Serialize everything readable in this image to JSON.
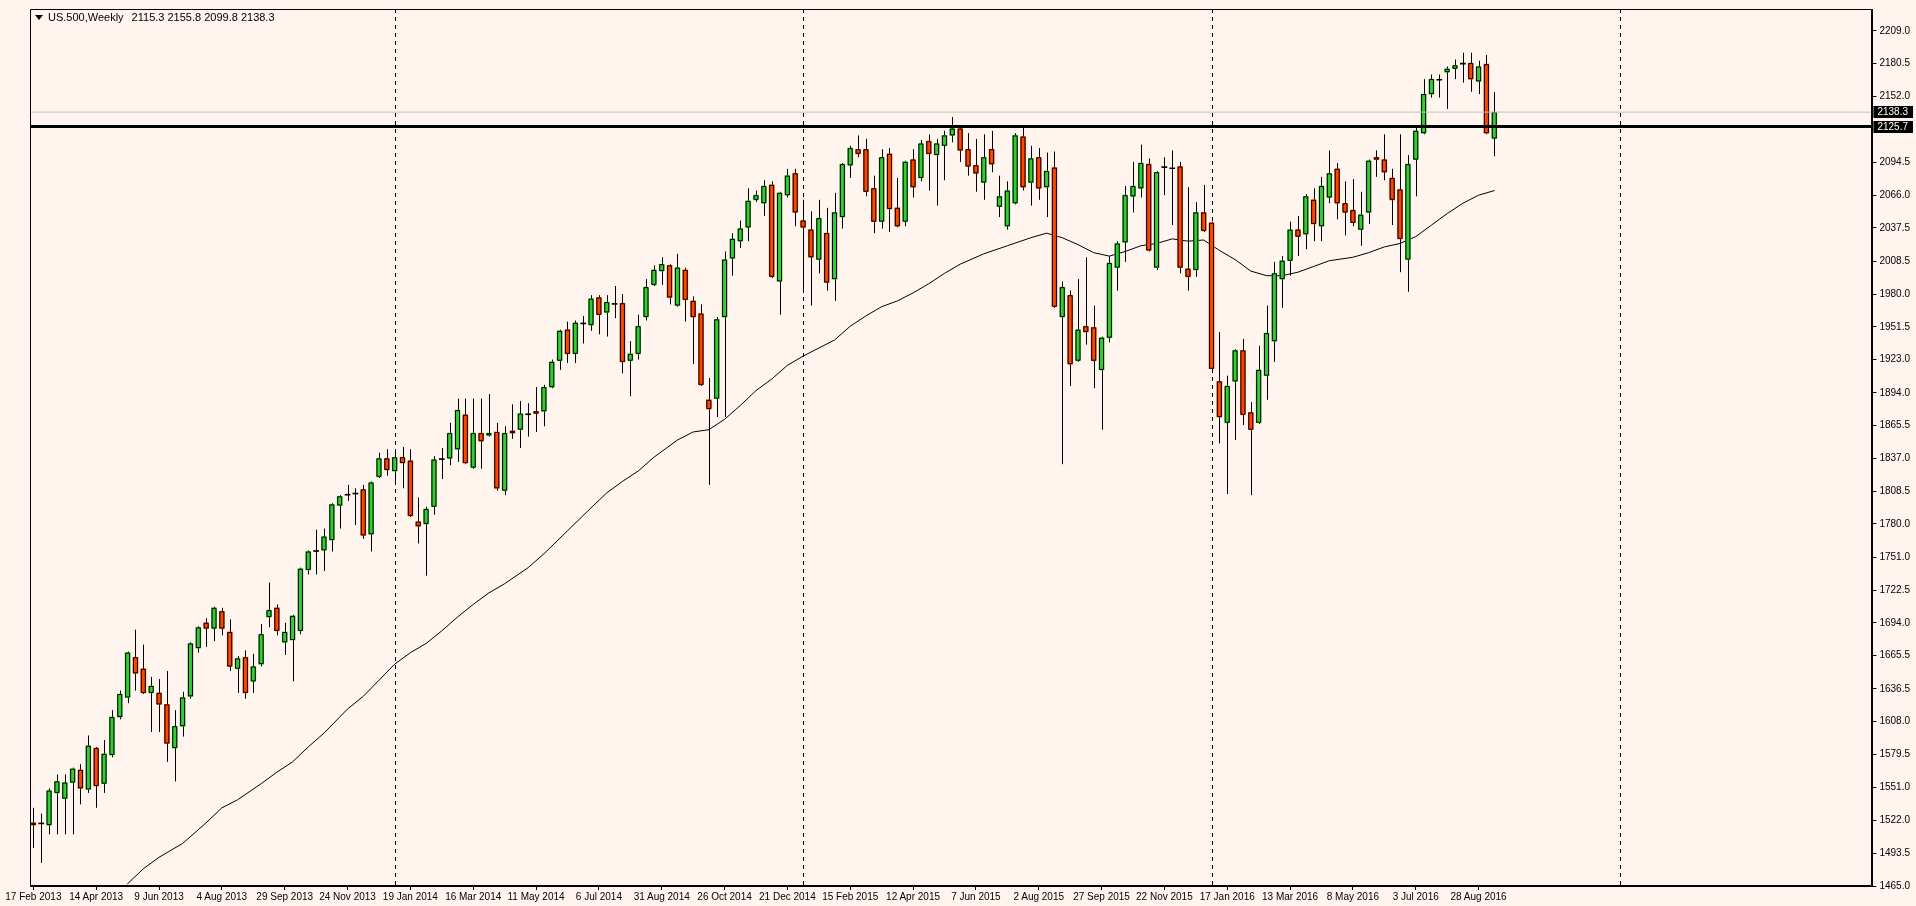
{
  "chart_data": {
    "type": "candlestick",
    "title": "US.500,Weekly",
    "subtitle": "2115.3 2155.8 2099.8 2138.3",
    "series": [
      {
        "x": [
          "2013-02-17",
          "2013-02-24",
          "2013-03-03",
          "2013-03-10",
          "2013-03-17",
          "2013-03-24",
          "2013-03-31",
          "2013-04-07",
          "2013-04-14",
          "2013-04-21",
          "2013-04-28",
          "2013-05-05",
          "2013-05-12",
          "2013-05-19",
          "2013-05-26",
          "2013-06-02",
          "2013-06-09",
          "2013-06-16",
          "2013-06-23",
          "2013-06-30",
          "2013-07-07",
          "2013-07-14",
          "2013-07-21",
          "2013-07-28",
          "2013-08-04",
          "2013-08-11",
          "2013-08-18",
          "2013-08-25",
          "2013-09-01",
          "2013-09-08",
          "2013-09-15",
          "2013-09-22",
          "2013-09-29",
          "2013-10-06",
          "2013-10-13",
          "2013-10-20",
          "2013-10-27",
          "2013-11-03",
          "2013-11-10",
          "2013-11-17",
          "2013-11-24",
          "2013-12-01",
          "2013-12-08",
          "2013-12-15",
          "2013-12-22",
          "2013-12-29",
          "2014-01-05",
          "2014-01-12",
          "2014-01-19",
          "2014-01-26",
          "2014-02-02",
          "2014-02-09",
          "2014-02-16",
          "2014-02-23",
          "2014-03-02",
          "2014-03-09",
          "2014-03-16",
          "2014-03-23",
          "2014-03-30",
          "2014-04-06",
          "2014-04-13",
          "2014-04-20",
          "2014-04-27",
          "2014-05-04",
          "2014-05-11",
          "2014-05-18",
          "2014-05-25",
          "2014-06-01",
          "2014-06-08",
          "2014-06-15",
          "2014-06-22",
          "2014-06-29",
          "2014-07-06",
          "2014-07-13",
          "2014-07-20",
          "2014-07-27",
          "2014-08-03",
          "2014-08-10",
          "2014-08-17",
          "2014-08-24",
          "2014-08-31",
          "2014-09-07",
          "2014-09-14",
          "2014-09-21",
          "2014-09-28",
          "2014-10-05",
          "2014-10-12",
          "2014-10-19",
          "2014-10-26",
          "2014-11-02",
          "2014-11-09",
          "2014-11-16",
          "2014-11-23",
          "2014-11-30",
          "2014-12-07",
          "2014-12-14",
          "2014-12-21",
          "2014-12-28",
          "2015-01-04",
          "2015-01-11",
          "2015-01-18",
          "2015-01-25",
          "2015-02-01",
          "2015-02-08",
          "2015-02-15",
          "2015-02-22",
          "2015-03-01",
          "2015-03-08",
          "2015-03-15",
          "2015-03-22",
          "2015-03-29",
          "2015-04-05",
          "2015-04-12",
          "2015-04-19",
          "2015-04-26",
          "2015-05-03",
          "2015-05-10",
          "2015-05-17",
          "2015-05-24",
          "2015-05-31",
          "2015-06-07",
          "2015-06-14",
          "2015-06-21",
          "2015-06-28",
          "2015-07-05",
          "2015-07-12",
          "2015-07-19",
          "2015-07-26",
          "2015-08-02",
          "2015-08-09",
          "2015-08-16",
          "2015-08-23",
          "2015-08-30",
          "2015-09-06",
          "2015-09-13",
          "2015-09-20",
          "2015-09-27",
          "2015-10-04",
          "2015-10-11",
          "2015-10-18",
          "2015-10-25",
          "2015-11-01",
          "2015-11-08",
          "2015-11-15",
          "2015-11-22",
          "2015-11-29",
          "2015-12-06",
          "2015-12-13",
          "2015-12-20",
          "2015-12-27",
          "2016-01-03",
          "2016-01-10",
          "2016-01-17",
          "2016-01-24",
          "2016-01-31",
          "2016-02-07",
          "2016-02-14",
          "2016-02-21",
          "2016-02-28",
          "2016-03-06",
          "2016-03-13",
          "2016-03-20",
          "2016-03-27",
          "2016-04-03",
          "2016-04-10",
          "2016-04-17",
          "2016-04-24",
          "2016-05-01",
          "2016-05-08",
          "2016-05-15",
          "2016-05-22",
          "2016-05-29",
          "2016-06-05",
          "2016-06-12",
          "2016-06-19",
          "2016-06-26",
          "2016-07-03",
          "2016-07-10",
          "2016-07-17",
          "2016-07-24",
          "2016-07-31",
          "2016-08-07",
          "2016-08-14",
          "2016-08-21",
          "2016-08-28",
          "2016-09-04",
          "2016-09-11"
        ],
        "ohlc": [
          [
            1520,
            1533,
            1498,
            1518
          ],
          [
            1519,
            1528,
            1485,
            1519
          ],
          [
            1518,
            1550,
            1510,
            1548
          ],
          [
            1546,
            1562,
            1510,
            1556
          ],
          [
            1541,
            1562,
            1510,
            1555
          ],
          [
            1555,
            1568,
            1510,
            1567
          ],
          [
            1566,
            1571,
            1536,
            1550
          ],
          [
            1549,
            1596,
            1546,
            1587
          ],
          [
            1585,
            1586,
            1533,
            1552
          ],
          [
            1554,
            1592,
            1546,
            1580
          ],
          [
            1579,
            1618,
            1577,
            1612
          ],
          [
            1612,
            1635,
            1610,
            1632
          ],
          [
            1629,
            1669,
            1624,
            1668
          ],
          [
            1664,
            1688,
            1635,
            1650
          ],
          [
            1654,
            1675,
            1632,
            1633
          ],
          [
            1633,
            1647,
            1599,
            1639
          ],
          [
            1633,
            1645,
            1599,
            1623
          ],
          [
            1623,
            1652,
            1573,
            1589
          ],
          [
            1585,
            1618,
            1556,
            1604
          ],
          [
            1604,
            1634,
            1595,
            1629
          ],
          [
            1630,
            1677,
            1628,
            1676
          ],
          [
            1672,
            1691,
            1668,
            1690
          ],
          [
            1694,
            1698,
            1673,
            1689
          ],
          [
            1689,
            1708,
            1678,
            1707
          ],
          [
            1704,
            1707,
            1683,
            1689
          ],
          [
            1686,
            1697,
            1652,
            1656
          ],
          [
            1654,
            1665,
            1633,
            1663
          ],
          [
            1664,
            1670,
            1628,
            1633
          ],
          [
            1643,
            1667,
            1633,
            1656
          ],
          [
            1658,
            1693,
            1656,
            1684
          ],
          [
            1699,
            1729,
            1690,
            1705
          ],
          [
            1707,
            1710,
            1683,
            1687
          ],
          [
            1677,
            1694,
            1666,
            1686
          ],
          [
            1679,
            1701,
            1643,
            1700
          ],
          [
            1687,
            1742,
            1684,
            1741
          ],
          [
            1740,
            1757,
            1736,
            1756
          ],
          [
            1756,
            1775,
            1736,
            1756
          ],
          [
            1757,
            1776,
            1739,
            1769
          ],
          [
            1766,
            1798,
            1756,
            1797
          ],
          [
            1796,
            1805,
            1776,
            1804
          ],
          [
            1805,
            1814,
            1800,
            1805
          ],
          [
            1806,
            1811,
            1779,
            1806
          ],
          [
            1810,
            1814,
            1767,
            1770
          ],
          [
            1771,
            1817,
            1756,
            1816
          ],
          [
            1821,
            1842,
            1820,
            1837
          ],
          [
            1837,
            1845,
            1822,
            1827
          ],
          [
            1826,
            1845,
            1817,
            1838
          ],
          [
            1838,
            1847,
            1811,
            1833
          ],
          [
            1835,
            1845,
            1786,
            1787
          ],
          [
            1782,
            1803,
            1763,
            1778
          ],
          [
            1780,
            1795,
            1735,
            1793
          ],
          [
            1795,
            1839,
            1788,
            1836
          ],
          [
            1836,
            1846,
            1819,
            1836
          ],
          [
            1837,
            1868,
            1831,
            1859
          ],
          [
            1845,
            1889,
            1834,
            1879
          ],
          [
            1875,
            1889,
            1832,
            1833
          ],
          [
            1829,
            1889,
            1828,
            1859
          ],
          [
            1859,
            1889,
            1828,
            1852
          ],
          [
            1857,
            1893,
            1856,
            1859
          ],
          [
            1860,
            1868,
            1809,
            1811
          ],
          [
            1809,
            1865,
            1805,
            1859
          ],
          [
            1861,
            1884,
            1854,
            1859
          ],
          [
            1862,
            1887,
            1846,
            1876
          ],
          [
            1875,
            1885,
            1856,
            1875
          ],
          [
            1878,
            1899,
            1860,
            1876
          ],
          [
            1878,
            1901,
            1865,
            1899
          ],
          [
            1899,
            1923,
            1898,
            1921
          ],
          [
            1922,
            1949,
            1914,
            1948
          ],
          [
            1949,
            1956,
            1920,
            1928
          ],
          [
            1928,
            1957,
            1920,
            1955
          ],
          [
            1954,
            1961,
            1937,
            1954
          ],
          [
            1953,
            1979,
            1948,
            1976
          ],
          [
            1977,
            1979,
            1945,
            1962
          ],
          [
            1964,
            1979,
            1943,
            1973
          ],
          [
            1971,
            1987,
            1959,
            1971
          ],
          [
            1972,
            1980,
            1911,
            1921
          ],
          [
            1922,
            1939,
            1891,
            1928
          ],
          [
            1928,
            1962,
            1923,
            1952
          ],
          [
            1960,
            1993,
            1957,
            1986
          ],
          [
            1988,
            2005,
            1987,
            2001
          ],
          [
            2000,
            2012,
            1988,
            2006
          ],
          [
            2005,
            2006,
            1971,
            1977
          ],
          [
            1970,
            2015,
            1969,
            2003
          ],
          [
            2001,
            2003,
            1956,
            1975
          ],
          [
            1974,
            1978,
            1919,
            1960
          ],
          [
            1963,
            1971,
            1900,
            1901
          ],
          [
            1888,
            1907,
            1814,
            1880
          ],
          [
            1889,
            1960,
            1873,
            1958
          ],
          [
            1960,
            2017,
            1873,
            2010
          ],
          [
            2011,
            2033,
            1996,
            2028
          ],
          [
            2026,
            2044,
            2020,
            2037
          ],
          [
            2038,
            2072,
            2026,
            2061
          ],
          [
            2062,
            2070,
            2060,
            2066
          ],
          [
            2059,
            2079,
            2048,
            2074
          ],
          [
            2075,
            2078,
            1994,
            1995
          ],
          [
            1991,
            2069,
            1962,
            2068
          ],
          [
            2066,
            2089,
            2064,
            2083
          ],
          [
            2085,
            2089,
            2039,
            2051
          ],
          [
            2044,
            2062,
            1983,
            2038
          ],
          [
            2036,
            2052,
            1970,
            2012
          ],
          [
            2010,
            2062,
            1998,
            2046
          ],
          [
            2033,
            2055,
            1983,
            1990
          ],
          [
            1993,
            2068,
            1974,
            2051
          ],
          [
            2047,
            2094,
            2037,
            2093
          ],
          [
            2092,
            2109,
            2081,
            2107
          ],
          [
            2106,
            2118,
            2099,
            2102
          ],
          [
            2106,
            2115,
            2065,
            2069
          ],
          [
            2072,
            2083,
            2033,
            2043
          ],
          [
            2043,
            2106,
            2037,
            2099
          ],
          [
            2102,
            2107,
            2034,
            2054
          ],
          [
            2055,
            2081,
            2038,
            2039
          ],
          [
            2043,
            2096,
            2039,
            2095
          ],
          [
            2097,
            2106,
            2064,
            2073
          ],
          [
            2081,
            2114,
            2078,
            2111
          ],
          [
            2113,
            2119,
            2070,
            2102
          ],
          [
            2101,
            2115,
            2057,
            2111
          ],
          [
            2109,
            2122,
            2079,
            2118
          ],
          [
            2118,
            2134,
            2112,
            2124
          ],
          [
            2124,
            2126,
            2095,
            2105
          ],
          [
            2106,
            2120,
            2083,
            2091
          ],
          [
            2092,
            2115,
            2069,
            2085
          ],
          [
            2077,
            2119,
            2062,
            2099
          ],
          [
            2106,
            2122,
            2086,
            2093
          ],
          [
            2056,
            2083,
            2047,
            2065
          ],
          [
            2039,
            2078,
            2036,
            2070
          ],
          [
            2059,
            2120,
            2058,
            2118
          ],
          [
            2117,
            2125,
            2070,
            2073
          ],
          [
            2077,
            2109,
            2057,
            2098
          ],
          [
            2099,
            2107,
            2062,
            2072
          ],
          [
            2073,
            2103,
            2047,
            2087
          ],
          [
            2090,
            2104,
            1968,
            1969
          ],
          [
            1960,
            1991,
            1832,
            1986
          ],
          [
            1979,
            1983,
            1900,
            1919
          ],
          [
            1922,
            1993,
            1921,
            1949
          ],
          [
            1952,
            2012,
            1936,
            1947
          ],
          [
            1951,
            1970,
            1898,
            1922
          ],
          [
            1914,
            1943,
            1862,
            1942
          ],
          [
            1942,
            2013,
            1938,
            2007
          ],
          [
            2003,
            2026,
            1983,
            2024
          ],
          [
            2025,
            2074,
            2008,
            2066
          ],
          [
            2065,
            2095,
            2051,
            2074
          ],
          [
            2072,
            2110,
            2064,
            2094
          ],
          [
            2093,
            2098,
            2017,
            2018
          ],
          [
            2003,
            2087,
            2001,
            2086
          ],
          [
            2090,
            2099,
            2066,
            2090
          ],
          [
            2089,
            2105,
            2040,
            2089
          ],
          [
            2091,
            2095,
            1998,
            2003
          ],
          [
            2002,
            2073,
            1983,
            1995
          ],
          [
            2001,
            2060,
            1995,
            2051
          ],
          [
            2051,
            2075,
            2034,
            2035
          ],
          [
            2042,
            2043,
            1913,
            1915
          ],
          [
            1904,
            1947,
            1850,
            1873
          ],
          [
            1868,
            1909,
            1806,
            1900
          ],
          [
            1904,
            1932,
            1853,
            1931
          ],
          [
            1931,
            1941,
            1866,
            1875
          ],
          [
            1877,
            1886,
            1805,
            1862
          ],
          [
            1868,
            1935,
            1867,
            1914
          ],
          [
            1909,
            1970,
            1888,
            1946
          ],
          [
            1939,
            2008,
            1921,
            1998
          ],
          [
            1993,
            2013,
            1968,
            2009
          ],
          [
            2009,
            2043,
            1996,
            2036
          ],
          [
            2036,
            2048,
            2013,
            2030
          ],
          [
            2032,
            2067,
            2019,
            2065
          ],
          [
            2062,
            2072,
            2026,
            2041
          ],
          [
            2039,
            2082,
            2026,
            2074
          ],
          [
            2064,
            2105,
            2059,
            2085
          ],
          [
            2089,
            2094,
            2045,
            2059
          ],
          [
            2059,
            2078,
            2031,
            2051
          ],
          [
            2053,
            2080,
            2039,
            2042
          ],
          [
            2036,
            2069,
            2022,
            2049
          ],
          [
            2051,
            2097,
            2041,
            2096
          ],
          [
            2099,
            2105,
            2082,
            2097
          ],
          [
            2097,
            2119,
            2079,
            2086
          ],
          [
            2081,
            2089,
            2040,
            2062
          ],
          [
            2071,
            2119,
            1999,
            2028
          ],
          [
            2010,
            2101,
            1982,
            2093
          ],
          [
            2097,
            2125,
            2065,
            2122
          ],
          [
            2120,
            2167,
            2119,
            2154
          ],
          [
            2154,
            2171,
            2151,
            2167
          ],
          [
            2166,
            2171,
            2151,
            2166
          ],
          [
            2173,
            2178,
            2141,
            2176
          ],
          [
            2176,
            2184,
            2167,
            2179
          ],
          [
            2180,
            2190,
            2164,
            2180
          ],
          [
            2181,
            2190,
            2156,
            2167
          ],
          [
            2165,
            2183,
            2154,
            2178
          ],
          [
            2180,
            2188,
            2119,
            2120
          ],
          [
            2115.3,
            2155.8,
            2099.8,
            2138.3
          ]
        ],
        "colors": [
          "#ff4500",
          "#000000",
          "#32cd32",
          "#32cd32",
          "#32cd32",
          "#32cd32",
          "#ff4500",
          "#32cd32",
          "#ff4500",
          "#32cd32",
          "#32cd32",
          "#32cd32",
          "#32cd32",
          "#ff4500",
          "#ff4500",
          "#32cd32",
          "#ff4500",
          "#ff4500",
          "#32cd32",
          "#32cd32",
          "#32cd32",
          "#32cd32",
          "#ff4500",
          "#32cd32",
          "#ff4500",
          "#ff4500",
          "#32cd32",
          "#ff4500",
          "#32cd32",
          "#32cd32",
          "#32cd32",
          "#ff4500",
          "#32cd32",
          "#32cd32",
          "#32cd32",
          "#32cd32",
          "#000000",
          "#32cd32",
          "#32cd32",
          "#32cd32",
          "#000000",
          "#000000",
          "#ff4500",
          "#32cd32",
          "#32cd32",
          "#ff4500",
          "#32cd32",
          "#ff4500",
          "#ff4500",
          "#ff4500",
          "#32cd32",
          "#32cd32",
          "#000000",
          "#32cd32",
          "#32cd32",
          "#ff4500",
          "#32cd32",
          "#ff4500",
          "#32cd32",
          "#ff4500",
          "#32cd32",
          "#ff4500",
          "#32cd32",
          "#000000",
          "#ff4500",
          "#32cd32",
          "#32cd32",
          "#32cd32",
          "#ff4500",
          "#32cd32",
          "#000000",
          "#32cd32",
          "#ff4500",
          "#32cd32",
          "#000000",
          "#ff4500",
          "#32cd32",
          "#32cd32",
          "#32cd32",
          "#32cd32",
          "#32cd32",
          "#ff4500",
          "#32cd32",
          "#ff4500",
          "#ff4500",
          "#ff4500",
          "#ff4500",
          "#32cd32",
          "#32cd32",
          "#32cd32",
          "#32cd32",
          "#32cd32",
          "#32cd32",
          "#32cd32",
          "#ff4500",
          "#32cd32",
          "#32cd32",
          "#ff4500",
          "#ff4500",
          "#ff4500",
          "#32cd32",
          "#ff4500",
          "#32cd32",
          "#32cd32",
          "#32cd32",
          "#ff4500",
          "#ff4500",
          "#ff4500",
          "#32cd32",
          "#ff4500",
          "#ff4500",
          "#32cd32",
          "#ff4500",
          "#32cd32",
          "#ff4500",
          "#32cd32",
          "#32cd32",
          "#32cd32",
          "#ff4500",
          "#ff4500",
          "#ff4500",
          "#32cd32",
          "#ff4500",
          "#32cd32",
          "#32cd32",
          "#32cd32",
          "#ff4500",
          "#32cd32",
          "#ff4500",
          "#32cd32",
          "#ff4500",
          "#32cd32",
          "#ff4500",
          "#32cd32",
          "#ff4500",
          "#ff4500",
          "#32cd32",
          "#32cd32",
          "#32cd32",
          "#32cd32",
          "#32cd32",
          "#32cd32",
          "#ff4500",
          "#32cd32",
          "#000000",
          "#000000",
          "#ff4500",
          "#ff4500",
          "#32cd32",
          "#ff4500",
          "#ff4500",
          "#ff4500",
          "#32cd32",
          "#32cd32",
          "#ff4500",
          "#ff4500",
          "#32cd32",
          "#32cd32",
          "#32cd32",
          "#32cd32",
          "#32cd32",
          "#ff4500",
          "#32cd32",
          "#ff4500",
          "#32cd32",
          "#32cd32",
          "#ff4500",
          "#ff4500",
          "#ff4500",
          "#32cd32",
          "#32cd32",
          "#ff4500",
          "#ff4500",
          "#ff4500",
          "#ff4500",
          "#32cd32",
          "#32cd32",
          "#32cd32",
          "#32cd32",
          "#000000",
          "#32cd32",
          "#32cd32",
          "#000000",
          "#ff4500",
          "#32cd32",
          "#ff4500",
          "#32cd32"
        ]
      },
      {
        "type": "line",
        "color": "#000000",
        "x": [
          "2013-05-12",
          "2013-05-26",
          "2013-06-09",
          "2013-06-30",
          "2013-07-21",
          "2013-08-04",
          "2013-08-18",
          "2013-09-08",
          "2013-09-22",
          "2013-10-06",
          "2013-10-20",
          "2013-11-03",
          "2013-11-24",
          "2013-12-08",
          "2013-12-22",
          "2014-01-05",
          "2014-01-19",
          "2014-02-02",
          "2014-02-16",
          "2014-03-02",
          "2014-03-16",
          "2014-03-30",
          "2014-04-13",
          "2014-05-04",
          "2014-05-18",
          "2014-06-08",
          "2014-06-29",
          "2014-07-13",
          "2014-07-27",
          "2014-08-10",
          "2014-08-24",
          "2014-09-14",
          "2014-09-28",
          "2014-10-12",
          "2014-10-26",
          "2014-11-09",
          "2014-11-23",
          "2014-12-07",
          "2014-12-21",
          "2015-01-04",
          "2015-01-18",
          "2015-02-01",
          "2015-02-15",
          "2015-03-01",
          "2015-03-15",
          "2015-03-29",
          "2015-04-12",
          "2015-04-26",
          "2015-05-10",
          "2015-05-24",
          "2015-06-14",
          "2015-07-05",
          "2015-07-26",
          "2015-08-09",
          "2015-08-23",
          "2015-09-06",
          "2015-09-20",
          "2015-10-04",
          "2015-10-18",
          "2015-11-01",
          "2015-11-15",
          "2015-11-29",
          "2015-12-13",
          "2015-12-27",
          "2016-01-10",
          "2016-01-24",
          "2016-02-07",
          "2016-02-21",
          "2016-03-06",
          "2016-03-20",
          "2016-04-03",
          "2016-04-17",
          "2016-05-08",
          "2016-05-22",
          "2016-06-05",
          "2016-06-19",
          "2016-07-03",
          "2016-07-17",
          "2016-07-31",
          "2016-08-14",
          "2016-08-28",
          "2016-09-11"
        ],
        "values": [
          1467,
          1480,
          1490,
          1502,
          1520,
          1533,
          1540,
          1554,
          1564,
          1573,
          1586,
          1598,
          1619,
          1630,
          1644,
          1658,
          1668,
          1676,
          1687,
          1699,
          1710,
          1720,
          1728,
          1742,
          1754,
          1774,
          1794,
          1807,
          1817,
          1826,
          1838,
          1853,
          1860,
          1862,
          1871,
          1883,
          1896,
          1906,
          1918,
          1926,
          1933,
          1940,
          1952,
          1961,
          1969,
          1974,
          1981,
          1989,
          1998,
          2006,
          2015,
          2022,
          2029,
          2033,
          2029,
          2023,
          2016,
          2013,
          2017,
          2022,
          2024,
          2028,
          2026,
          2027,
          2018,
          2010,
          2000,
          1996,
          1996,
          1999,
          2004,
          2009,
          2012,
          2016,
          2021,
          2024,
          2030,
          2040,
          2050,
          2059,
          2066,
          2070
        ]
      }
    ],
    "xlim": [
      "2013-02-14",
      "2017-08-14"
    ],
    "xticks": [
      {
        "value": "2013-02-17",
        "label": "17 Feb 2013"
      },
      {
        "value": "2013-04-14",
        "label": "14 Apr 2013"
      },
      {
        "value": "2013-06-09",
        "label": "9 Jun 2013"
      },
      {
        "value": "2013-08-04",
        "label": "4 Aug 2013"
      },
      {
        "value": "2013-09-29",
        "label": "29 Sep 2013"
      },
      {
        "value": "2013-11-24",
        "label": "24 Nov 2013"
      },
      {
        "value": "2014-01-19",
        "label": "19 Jan 2014"
      },
      {
        "value": "2014-03-16",
        "label": "16 Mar 2014"
      },
      {
        "value": "2014-05-11",
        "label": "11 May 2014"
      },
      {
        "value": "2014-07-06",
        "label": "6 Jul 2014"
      },
      {
        "value": "2014-08-31",
        "label": "31 Aug 2014"
      },
      {
        "value": "2014-10-26",
        "label": "26 Oct 2014"
      },
      {
        "value": "2014-12-21",
        "label": "21 Dec 2014"
      },
      {
        "value": "2015-02-15",
        "label": "15 Feb 2015"
      },
      {
        "value": "2015-04-12",
        "label": "12 Apr 2015"
      },
      {
        "value": "2015-06-07",
        "label": "7 Jun 2015"
      },
      {
        "value": "2015-08-02",
        "label": "2 Aug 2015"
      },
      {
        "value": "2015-09-27",
        "label": "27 Sep 2015"
      },
      {
        "value": "2015-11-22",
        "label": "22 Nov 2015"
      },
      {
        "value": "2016-01-17",
        "label": "17 Jan 2016"
      },
      {
        "value": "2016-03-13",
        "label": "13 Mar 2016"
      },
      {
        "value": "2016-05-08",
        "label": "8 May 2016"
      },
      {
        "value": "2016-07-03",
        "label": "3 Jul 2016"
      },
      {
        "value": "2016-08-28",
        "label": "28 Aug 2016"
      }
    ],
    "ylim": [
      1465,
      2228
    ],
    "yticks": [
      {
        "value": 1465,
        "label": "1465.0"
      },
      {
        "value": 1493.5,
        "label": "1493.5"
      },
      {
        "value": 1522,
        "label": "1522.0"
      },
      {
        "value": 1551,
        "label": "1551.0"
      },
      {
        "value": 1579.5,
        "label": "1579.5"
      },
      {
        "value": 1608,
        "label": "1608.0"
      },
      {
        "value": 1636.5,
        "label": "1636.5"
      },
      {
        "value": 1665.5,
        "label": "1665.5"
      },
      {
        "value": 1694,
        "label": "1694.0"
      },
      {
        "value": 1722.5,
        "label": "1722.5"
      },
      {
        "value": 1751,
        "label": "1751.0"
      },
      {
        "value": 1780,
        "label": "1780.0"
      },
      {
        "value": 1808.5,
        "label": "1808.5"
      },
      {
        "value": 1837,
        "label": "1837.0"
      },
      {
        "value": 1865.5,
        "label": "1865.5"
      },
      {
        "value": 1894,
        "label": "1894.0"
      },
      {
        "value": 1923,
        "label": "1923.0"
      },
      {
        "value": 1951.5,
        "label": "1951.5"
      },
      {
        "value": 1980,
        "label": "1980.0"
      },
      {
        "value": 2008.5,
        "label": "2008.5"
      },
      {
        "value": 2037.5,
        "label": "2037.5"
      },
      {
        "value": 2066,
        "label": "2066.0"
      },
      {
        "value": 2094.5,
        "label": "2094.5"
      },
      {
        "value": 2152,
        "label": "2152.0"
      },
      {
        "value": 2180.5,
        "label": "2180.5"
      },
      {
        "value": 2209,
        "label": "2209.0"
      }
    ],
    "ref_lines": [
      {
        "axis": "y",
        "value": 2138.3,
        "label": "2138.3",
        "color": "#c0c0c0"
      },
      {
        "axis": "y",
        "value": 2125.7,
        "label": "2125.7",
        "color": "#000000"
      },
      {
        "axis": "x",
        "value": "2014-01-05",
        "color": "#000000",
        "line_style": "dashed"
      },
      {
        "axis": "x",
        "value": "2015-01-04",
        "color": "#000000",
        "line_style": "dashed"
      },
      {
        "axis": "x",
        "value": "2016-01-03",
        "color": "#000000",
        "line_style": "dashed"
      },
      {
        "axis": "x",
        "value": "2017-01-01",
        "color": "#000000",
        "line_style": "dashed"
      }
    ]
  }
}
